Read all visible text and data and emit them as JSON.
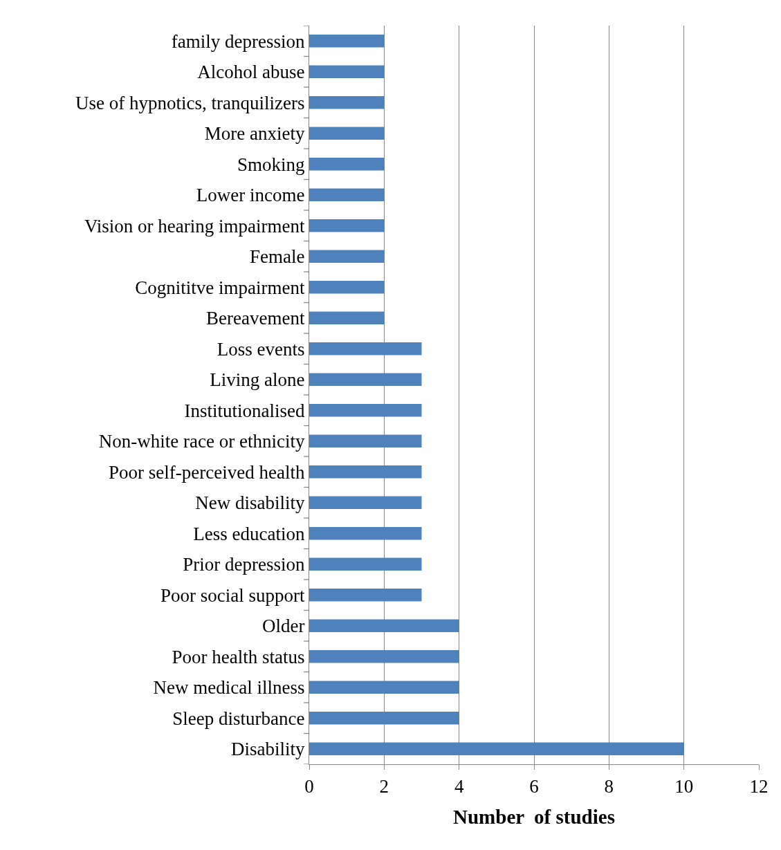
{
  "chart_data": {
    "type": "bar",
    "orientation": "horizontal",
    "xlabel": "Number  of studies",
    "categories": [
      "family depression",
      "Alcohol abuse",
      "Use of hypnotics, tranquilizers",
      "More anxiety",
      "Smoking",
      "Lower income",
      "Vision or hearing impairment",
      "Female",
      "Cognititve impairment",
      "Bereavement",
      "Loss events",
      "Living alone",
      "Institutionalised",
      "Non-white race or ethnicity",
      "Poor self-perceived health",
      "New disability",
      "Less education",
      "Prior depression",
      "Poor social support",
      "Older",
      "Poor health status",
      "New medical illness",
      "Sleep disturbance",
      "Disability"
    ],
    "values": [
      2,
      2,
      2,
      2,
      2,
      2,
      2,
      2,
      2,
      2,
      3,
      3,
      3,
      3,
      3,
      3,
      3,
      3,
      3,
      4,
      4,
      4,
      4,
      10
    ],
    "color": "#4f81bd",
    "xlim": [
      0,
      12
    ],
    "xticks": [
      0,
      2,
      4,
      6,
      8,
      10,
      12
    ],
    "grid": "x"
  }
}
